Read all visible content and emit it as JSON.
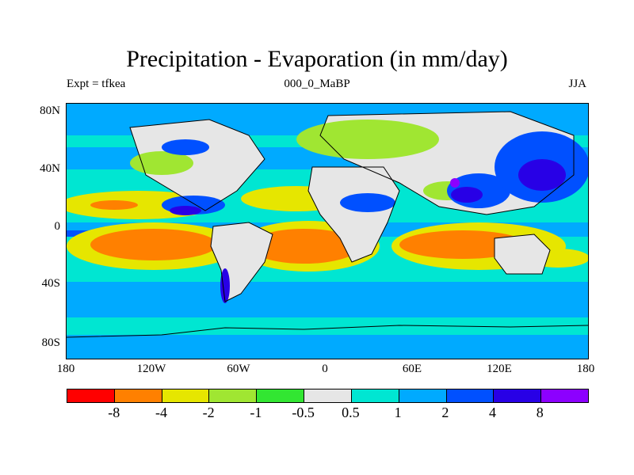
{
  "title": "Precipitation - Evaporation (in mm/day)",
  "subtitle_left": "Expt = tfkea",
  "subtitle_center": "000_0_MaBP",
  "subtitle_right": "JJA",
  "y_ticks": [
    "80N",
    "40N",
    "0",
    "40S",
    "80S"
  ],
  "x_ticks": [
    "180",
    "120W",
    "60W",
    "0",
    "60E",
    "120E",
    "180"
  ],
  "colorbar": {
    "colors": [
      "#ff0000",
      "#ff8000",
      "#e6e600",
      "#a0e632",
      "#32e632",
      "#e6e6e6",
      "#00e6d2",
      "#00aaff",
      "#0050ff",
      "#2800e6",
      "#8c00ff"
    ],
    "labels": [
      "-8",
      "-4",
      "-2",
      "-1",
      "-0.5",
      "0.5",
      "1",
      "2",
      "4",
      "8"
    ]
  }
}
